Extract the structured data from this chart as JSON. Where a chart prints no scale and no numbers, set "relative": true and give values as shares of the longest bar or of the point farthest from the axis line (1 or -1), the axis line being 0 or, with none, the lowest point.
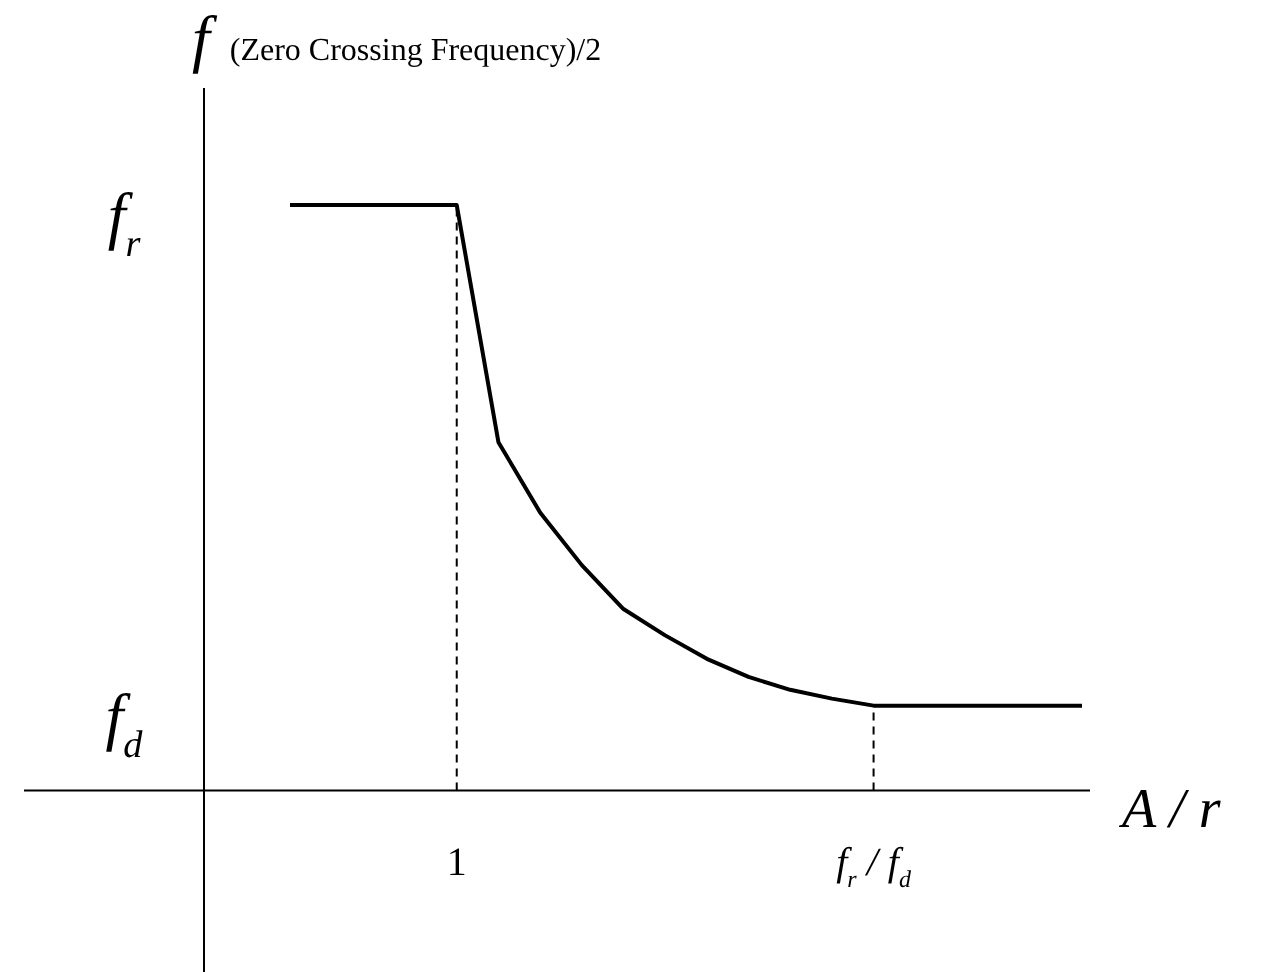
{
  "chart_data": {
    "type": "line",
    "relative": true,
    "ylabel": "f (Zero Crossing Frequency)/2",
    "xlabel": "A / r",
    "categories": [
      null,
      null,
      null,
      null,
      "1",
      null,
      null,
      null,
      null,
      null,
      null,
      null,
      null,
      null,
      "f$_{r}$ / f$_{d}$",
      null,
      null,
      null,
      null,
      null
    ],
    "series": [
      {
        "color": "#000000",
        "values": [
          1,
          1,
          1,
          1,
          1,
          0.595,
          0.475,
          0.385,
          0.31,
          0.265,
          0.225,
          0.194,
          0.172,
          0.157,
          0.145,
          0.145,
          0.145,
          0.145,
          0.145,
          0.145
        ]
      }
    ],
    "ref_lines": [
      {
        "axis": "x",
        "value": "1",
        "line_style": "dashed"
      },
      {
        "axis": "x",
        "value": "f$_{r}$ / f$_{d}$",
        "line_style": "dashed"
      }
    ],
    "annotations": [
      "f$_{r}$",
      "f$_{d}$"
    ],
    "legend": false,
    "marker": "none",
    "line_style": "solid"
  }
}
